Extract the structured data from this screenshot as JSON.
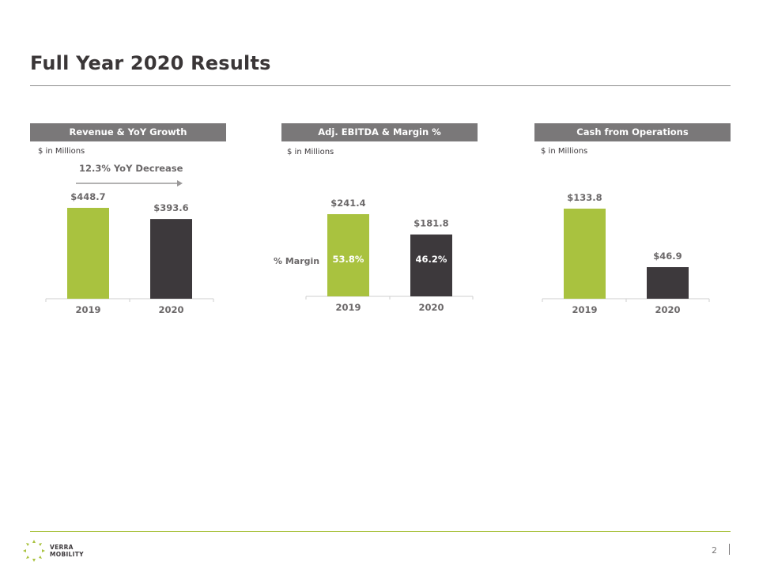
{
  "slide": {
    "title": "Full Year 2020 Results",
    "page_number": "2",
    "logo_text_line1": "VERRA",
    "logo_text_line2": "MOBILITY"
  },
  "colors": {
    "bar_2019": "#a9c23f",
    "bar_2020": "#3d393c",
    "header_bg": "#7a7879",
    "accent_rule": "#a9c23f"
  },
  "chart_data": [
    {
      "type": "bar",
      "title": "Revenue & YoY Growth",
      "units": "$ in Millions",
      "categories": [
        "2019",
        "2020"
      ],
      "values": [
        448.7,
        393.6
      ],
      "value_labels": [
        "$448.7",
        "$393.6"
      ],
      "annotation": "12.3% YoY Decrease",
      "ylim": [
        0,
        448.7
      ]
    },
    {
      "type": "bar",
      "title": "Adj. EBITDA & Margin %",
      "units": "$ in Millions",
      "categories": [
        "2019",
        "2020"
      ],
      "values": [
        241.4,
        181.8
      ],
      "value_labels": [
        "$241.4",
        "$181.8"
      ],
      "margin_label": "% Margin",
      "margins": [
        "53.8%",
        "46.2%"
      ],
      "ylim": [
        0,
        241.4
      ]
    },
    {
      "type": "bar",
      "title": "Cash from Operations",
      "units": "$ in Millions",
      "categories": [
        "2019",
        "2020"
      ],
      "values": [
        133.8,
        46.9
      ],
      "value_labels": [
        "$133.8",
        "$46.9"
      ],
      "ylim": [
        0,
        133.8
      ]
    }
  ]
}
